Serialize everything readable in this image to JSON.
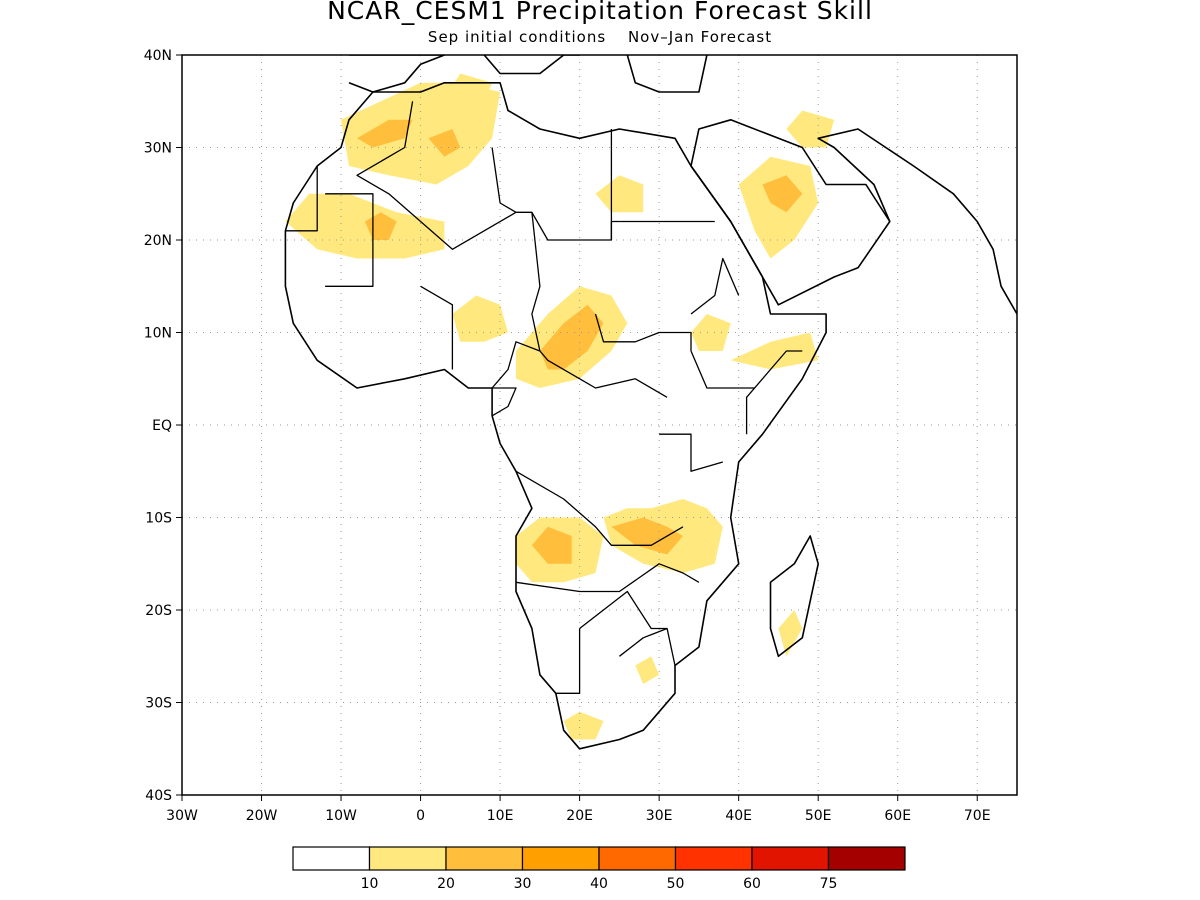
{
  "title": "NCAR_CESM1 Precipitation Forecast Skill",
  "subtitle": {
    "initial": "Sep initial conditions",
    "forecast": "Nov–Jan Forecast"
  },
  "map": {
    "lon_range": [
      -30,
      75
    ],
    "lat_range": [
      -40,
      40
    ],
    "x_ticks": [
      {
        "value": -30,
        "label": "30W"
      },
      {
        "value": -20,
        "label": "20W"
      },
      {
        "value": -10,
        "label": "10W"
      },
      {
        "value": 0,
        "label": "0"
      },
      {
        "value": 10,
        "label": "10E"
      },
      {
        "value": 20,
        "label": "20E"
      },
      {
        "value": 30,
        "label": "30E"
      },
      {
        "value": 40,
        "label": "40E"
      },
      {
        "value": 50,
        "label": "50E"
      },
      {
        "value": 60,
        "label": "60E"
      },
      {
        "value": 70,
        "label": "70E"
      }
    ],
    "y_ticks": [
      {
        "value": 40,
        "label": "40N"
      },
      {
        "value": 30,
        "label": "30N"
      },
      {
        "value": 20,
        "label": "20N"
      },
      {
        "value": 10,
        "label": "10N"
      },
      {
        "value": 0,
        "label": "EQ"
      },
      {
        "value": -10,
        "label": "10S"
      },
      {
        "value": -20,
        "label": "20S"
      },
      {
        "value": -30,
        "label": "30S"
      },
      {
        "value": -40,
        "label": "40S"
      }
    ],
    "grid": "dotted"
  },
  "colorbar": {
    "colors": [
      "#ffffff",
      "#ffe97f",
      "#ffbe3c",
      "#ffa000",
      "#ff6900",
      "#ff3200",
      "#e11400",
      "#a50000"
    ],
    "labels": [
      "10",
      "20",
      "30",
      "40",
      "50",
      "60",
      "75"
    ]
  },
  "skill_regions": [
    {
      "level": 1,
      "points": [
        [
          -10,
          33
        ],
        [
          -5,
          35
        ],
        [
          0,
          37
        ],
        [
          5,
          37
        ],
        [
          10,
          36
        ],
        [
          9,
          31
        ],
        [
          6,
          28
        ],
        [
          2,
          26
        ],
        [
          -4,
          27
        ],
        [
          -9,
          28
        ]
      ]
    },
    {
      "level": 2,
      "points": [
        [
          -8,
          31
        ],
        [
          -4,
          33
        ],
        [
          -1,
          33
        ],
        [
          -2,
          31
        ],
        [
          -6,
          30
        ]
      ]
    },
    {
      "level": 2,
      "points": [
        [
          1,
          31
        ],
        [
          4,
          32
        ],
        [
          5,
          30
        ],
        [
          3,
          29
        ]
      ]
    },
    {
      "level": 1,
      "points": [
        [
          -17,
          22
        ],
        [
          -14,
          25
        ],
        [
          -9,
          25
        ],
        [
          -3,
          23
        ],
        [
          3,
          22
        ],
        [
          3,
          19
        ],
        [
          -2,
          18
        ],
        [
          -8,
          18
        ],
        [
          -13,
          19
        ]
      ]
    },
    {
      "level": 2,
      "points": [
        [
          -7,
          22
        ],
        [
          -5,
          23
        ],
        [
          -3,
          22
        ],
        [
          -4,
          20
        ],
        [
          -6,
          20
        ]
      ]
    },
    {
      "level": 1,
      "points": [
        [
          22,
          25
        ],
        [
          25,
          27
        ],
        [
          28,
          26
        ],
        [
          28,
          23
        ],
        [
          24,
          23
        ]
      ]
    },
    {
      "level": 1,
      "points": [
        [
          40,
          26
        ],
        [
          44,
          29
        ],
        [
          49,
          28
        ],
        [
          50,
          24
        ],
        [
          47,
          20
        ],
        [
          44,
          18
        ],
        [
          42,
          21
        ]
      ]
    },
    {
      "level": 2,
      "points": [
        [
          43,
          26
        ],
        [
          46,
          27
        ],
        [
          48,
          25
        ],
        [
          46,
          23
        ],
        [
          44,
          24
        ]
      ]
    },
    {
      "level": 1,
      "points": [
        [
          46,
          32
        ],
        [
          48,
          34
        ],
        [
          52,
          33
        ],
        [
          51,
          30
        ],
        [
          48,
          30
        ]
      ]
    },
    {
      "level": 1,
      "points": [
        [
          4,
          12
        ],
        [
          7,
          14
        ],
        [
          10,
          13
        ],
        [
          11,
          10
        ],
        [
          8,
          9
        ],
        [
          5,
          9
        ]
      ]
    },
    {
      "level": 1,
      "points": [
        [
          12,
          8
        ],
        [
          16,
          12
        ],
        [
          20,
          15
        ],
        [
          24,
          14
        ],
        [
          26,
          11
        ],
        [
          24,
          8
        ],
        [
          20,
          5
        ],
        [
          15,
          4
        ],
        [
          12,
          5
        ]
      ]
    },
    {
      "level": 2,
      "points": [
        [
          15,
          8
        ],
        [
          18,
          11
        ],
        [
          21,
          13
        ],
        [
          23,
          11
        ],
        [
          21,
          8
        ],
        [
          18,
          6
        ],
        [
          16,
          6
        ]
      ]
    },
    {
      "level": 1,
      "points": [
        [
          34,
          10
        ],
        [
          36,
          12
        ],
        [
          39,
          11
        ],
        [
          38,
          8
        ],
        [
          35,
          8
        ]
      ]
    },
    {
      "level": 1,
      "points": [
        [
          39,
          7
        ],
        [
          44,
          9
        ],
        [
          49,
          10
        ],
        [
          50,
          7
        ],
        [
          44,
          6
        ]
      ]
    },
    {
      "level": 1,
      "points": [
        [
          12,
          -12
        ],
        [
          15,
          -10
        ],
        [
          20,
          -10
        ],
        [
          23,
          -12
        ],
        [
          22,
          -16
        ],
        [
          18,
          -17
        ],
        [
          14,
          -17
        ],
        [
          12,
          -15
        ]
      ]
    },
    {
      "level": 2,
      "points": [
        [
          14,
          -13
        ],
        [
          16,
          -11
        ],
        [
          19,
          -12
        ],
        [
          19,
          -15
        ],
        [
          16,
          -15
        ]
      ]
    },
    {
      "level": 1,
      "points": [
        [
          23,
          -10
        ],
        [
          26,
          -9
        ],
        [
          29,
          -9
        ],
        [
          33,
          -8
        ],
        [
          36,
          -9
        ],
        [
          38,
          -11
        ],
        [
          37,
          -15
        ],
        [
          33,
          -16
        ],
        [
          28,
          -15
        ],
        [
          24,
          -13
        ]
      ]
    },
    {
      "level": 2,
      "points": [
        [
          24,
          -11
        ],
        [
          28,
          -10
        ],
        [
          31,
          -11
        ],
        [
          33,
          -12
        ],
        [
          31,
          -14
        ],
        [
          27,
          -13
        ]
      ]
    },
    {
      "level": 1,
      "points": [
        [
          27,
          -26
        ],
        [
          29,
          -25
        ],
        [
          30,
          -27
        ],
        [
          28,
          -28
        ]
      ]
    },
    {
      "level": 1,
      "points": [
        [
          18,
          -32
        ],
        [
          20,
          -31
        ],
        [
          23,
          -32
        ],
        [
          22,
          -34
        ],
        [
          19,
          -34
        ]
      ]
    },
    {
      "level": 1,
      "points": [
        [
          45,
          -22
        ],
        [
          47,
          -20
        ],
        [
          48,
          -22
        ],
        [
          46,
          -25
        ]
      ]
    },
    {
      "level": 1,
      "points": [
        [
          2,
          34
        ],
        [
          5,
          38
        ],
        [
          9,
          37
        ],
        [
          7,
          33
        ]
      ]
    }
  ],
  "land_outlines": [
    {
      "name": "africa",
      "points": [
        [
          -6,
          36
        ],
        [
          0,
          36
        ],
        [
          3,
          37
        ],
        [
          10,
          37
        ],
        [
          11,
          34
        ],
        [
          15,
          32
        ],
        [
          20,
          31
        ],
        [
          25,
          32
        ],
        [
          32,
          31
        ],
        [
          34,
          28
        ],
        [
          39,
          22
        ],
        [
          43,
          16
        ],
        [
          44,
          12
        ],
        [
          51,
          12
        ],
        [
          51,
          10
        ],
        [
          48,
          5
        ],
        [
          43,
          -1
        ],
        [
          40,
          -4
        ],
        [
          39,
          -10
        ],
        [
          40,
          -15
        ],
        [
          36,
          -19
        ],
        [
          35,
          -24
        ],
        [
          32,
          -26
        ],
        [
          32,
          -29
        ],
        [
          28,
          -33
        ],
        [
          25,
          -34
        ],
        [
          20,
          -35
        ],
        [
          18,
          -33
        ],
        [
          17,
          -29
        ],
        [
          15,
          -27
        ],
        [
          14,
          -22
        ],
        [
          12,
          -18
        ],
        [
          12,
          -12
        ],
        [
          14,
          -9
        ],
        [
          12,
          -5
        ],
        [
          10,
          -2
        ],
        [
          9,
          1
        ],
        [
          9,
          4
        ],
        [
          6,
          4
        ],
        [
          3,
          6
        ],
        [
          -2,
          5
        ],
        [
          -8,
          4
        ],
        [
          -13,
          7
        ],
        [
          -16,
          11
        ],
        [
          -17,
          15
        ],
        [
          -17,
          21
        ],
        [
          -16,
          24
        ],
        [
          -13,
          28
        ],
        [
          -10,
          30
        ],
        [
          -9,
          33
        ]
      ]
    },
    {
      "name": "arabia",
      "points": [
        [
          34,
          28
        ],
        [
          35,
          32
        ],
        [
          39,
          33
        ],
        [
          48,
          30
        ],
        [
          51,
          26
        ],
        [
          56,
          26
        ],
        [
          59,
          22
        ],
        [
          55,
          17
        ],
        [
          52,
          16
        ],
        [
          45,
          13
        ],
        [
          43,
          16
        ],
        [
          39,
          22
        ]
      ]
    },
    {
      "name": "madagascar",
      "points": [
        [
          49,
          -12
        ],
        [
          50,
          -15
        ],
        [
          48,
          -23
        ],
        [
          45,
          -25
        ],
        [
          44,
          -22
        ],
        [
          44,
          -17
        ],
        [
          47,
          -15
        ]
      ]
    },
    {
      "name": "iberia",
      "points": [
        [
          -9,
          37
        ],
        [
          -6,
          36
        ],
        [
          -2,
          37
        ],
        [
          0,
          39
        ],
        [
          3,
          40
        ],
        [
          -9,
          40
        ]
      ]
    },
    {
      "name": "europe-med",
      "points": [
        [
          8,
          40
        ],
        [
          10,
          38
        ],
        [
          15,
          38
        ],
        [
          18,
          40
        ],
        [
          20,
          40
        ]
      ]
    },
    {
      "name": "asia-coast",
      "points": [
        [
          59,
          22
        ],
        [
          57,
          26
        ],
        [
          52,
          30
        ],
        [
          50,
          31
        ],
        [
          55,
          32
        ],
        [
          62,
          28
        ],
        [
          67,
          25
        ],
        [
          70,
          22
        ],
        [
          72,
          19
        ],
        [
          73,
          15
        ],
        [
          75,
          12
        ]
      ]
    },
    {
      "name": "caspian-turkey",
      "points": [
        [
          26,
          40
        ],
        [
          27,
          37
        ],
        [
          30,
          36
        ],
        [
          35,
          36
        ],
        [
          36,
          40
        ]
      ]
    }
  ],
  "borders": [
    [
      [
        -1,
        35
      ],
      [
        -2,
        30
      ],
      [
        -8,
        27
      ],
      [
        -4,
        25
      ],
      [
        4,
        19
      ],
      [
        12,
        23
      ],
      [
        14,
        23
      ],
      [
        16,
        20
      ],
      [
        24,
        20
      ],
      [
        24,
        22
      ],
      [
        25,
        22
      ]
    ],
    [
      [
        9,
        30
      ],
      [
        10,
        24
      ],
      [
        12,
        23
      ]
    ],
    [
      [
        24,
        32
      ],
      [
        24,
        20
      ]
    ],
    [
      [
        25,
        22
      ],
      [
        37,
        22
      ]
    ],
    [
      [
        -17,
        21
      ],
      [
        -13,
        21
      ],
      [
        -13,
        28
      ]
    ],
    [
      [
        -12,
        25
      ],
      [
        -6,
        25
      ],
      [
        -6,
        15
      ],
      [
        -12,
        15
      ]
    ],
    [
      [
        0,
        15
      ],
      [
        4,
        13
      ],
      [
        4,
        6
      ]
    ],
    [
      [
        14,
        23
      ],
      [
        15,
        15
      ],
      [
        14,
        12
      ],
      [
        15,
        8
      ],
      [
        16,
        7
      ],
      [
        22,
        4
      ],
      [
        27,
        5
      ],
      [
        31,
        3
      ]
    ],
    [
      [
        22,
        12
      ],
      [
        23,
        9
      ],
      [
        27,
        9
      ],
      [
        30,
        10
      ],
      [
        34,
        10
      ],
      [
        34,
        8
      ]
    ],
    [
      [
        34,
        12
      ],
      [
        37,
        14
      ],
      [
        38,
        18
      ],
      [
        40,
        14
      ]
    ],
    [
      [
        34,
        8
      ],
      [
        36,
        4
      ],
      [
        40,
        4
      ],
      [
        42,
        4
      ]
    ],
    [
      [
        41,
        -1
      ],
      [
        41,
        3
      ],
      [
        46,
        8
      ],
      [
        48,
        8
      ]
    ],
    [
      [
        30,
        -1
      ],
      [
        34,
        -1
      ],
      [
        34,
        -5
      ],
      [
        38,
        -4
      ]
    ],
    [
      [
        12,
        -5
      ],
      [
        18,
        -8
      ],
      [
        22,
        -11
      ],
      [
        24,
        -13
      ],
      [
        29,
        -13
      ],
      [
        33,
        -11
      ]
    ],
    [
      [
        12,
        -17
      ],
      [
        20,
        -18
      ],
      [
        25,
        -18
      ],
      [
        30,
        -15
      ],
      [
        33,
        -16
      ],
      [
        35,
        -17
      ]
    ],
    [
      [
        20,
        -22
      ],
      [
        20,
        -29
      ],
      [
        17,
        -29
      ]
    ],
    [
      [
        20,
        -22
      ],
      [
        26,
        -18
      ],
      [
        29,
        -22
      ],
      [
        31,
        -22
      ]
    ],
    [
      [
        25,
        -25
      ],
      [
        28,
        -23
      ],
      [
        31,
        -22
      ],
      [
        32,
        -26
      ]
    ],
    [
      [
        9,
        1
      ],
      [
        11,
        2
      ],
      [
        12,
        4
      ],
      [
        9,
        4
      ]
    ],
    [
      [
        9,
        4
      ],
      [
        11,
        6
      ],
      [
        12,
        9
      ],
      [
        15,
        8
      ]
    ]
  ]
}
